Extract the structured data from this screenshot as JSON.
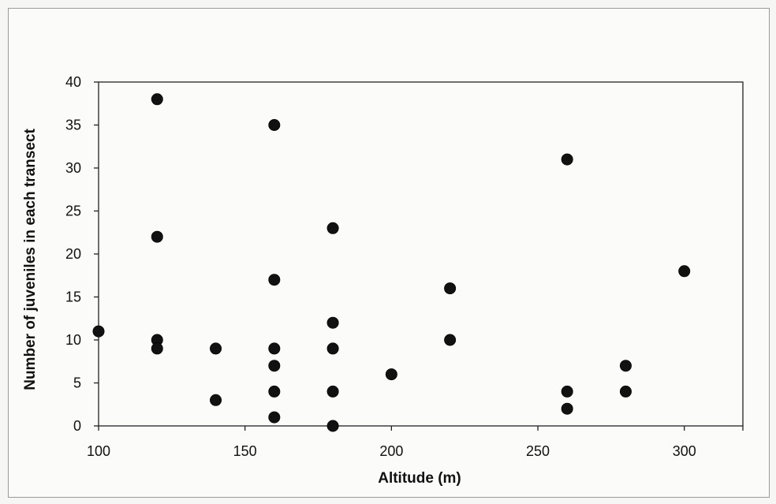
{
  "chart_data": {
    "type": "scatter",
    "title": "",
    "xlabel": "Altitude (m)",
    "ylabel": "Number of juveniles in each transect",
    "xlim": [
      100,
      320
    ],
    "ylim": [
      0,
      40
    ],
    "x_ticks": [
      "100",
      "150",
      "200",
      "250",
      "300"
    ],
    "y_ticks": [
      "0",
      "5",
      "10",
      "15",
      "20",
      "25",
      "30",
      "35",
      "40"
    ],
    "grid": false,
    "legend": false,
    "marker_color": "#111111",
    "points": [
      {
        "x": 100,
        "y": 11
      },
      {
        "x": 120,
        "y": 38
      },
      {
        "x": 120,
        "y": 22
      },
      {
        "x": 120,
        "y": 10
      },
      {
        "x": 120,
        "y": 9
      },
      {
        "x": 140,
        "y": 9
      },
      {
        "x": 140,
        "y": 3
      },
      {
        "x": 160,
        "y": 35
      },
      {
        "x": 160,
        "y": 17
      },
      {
        "x": 160,
        "y": 9
      },
      {
        "x": 160,
        "y": 7
      },
      {
        "x": 160,
        "y": 4
      },
      {
        "x": 160,
        "y": 1
      },
      {
        "x": 180,
        "y": 23
      },
      {
        "x": 180,
        "y": 12
      },
      {
        "x": 180,
        "y": 9
      },
      {
        "x": 180,
        "y": 4
      },
      {
        "x": 180,
        "y": 0
      },
      {
        "x": 200,
        "y": 6
      },
      {
        "x": 220,
        "y": 16
      },
      {
        "x": 220,
        "y": 10
      },
      {
        "x": 260,
        "y": 31
      },
      {
        "x": 260,
        "y": 4
      },
      {
        "x": 260,
        "y": 2
      },
      {
        "x": 280,
        "y": 7
      },
      {
        "x": 280,
        "y": 4
      },
      {
        "x": 300,
        "y": 18
      }
    ]
  }
}
